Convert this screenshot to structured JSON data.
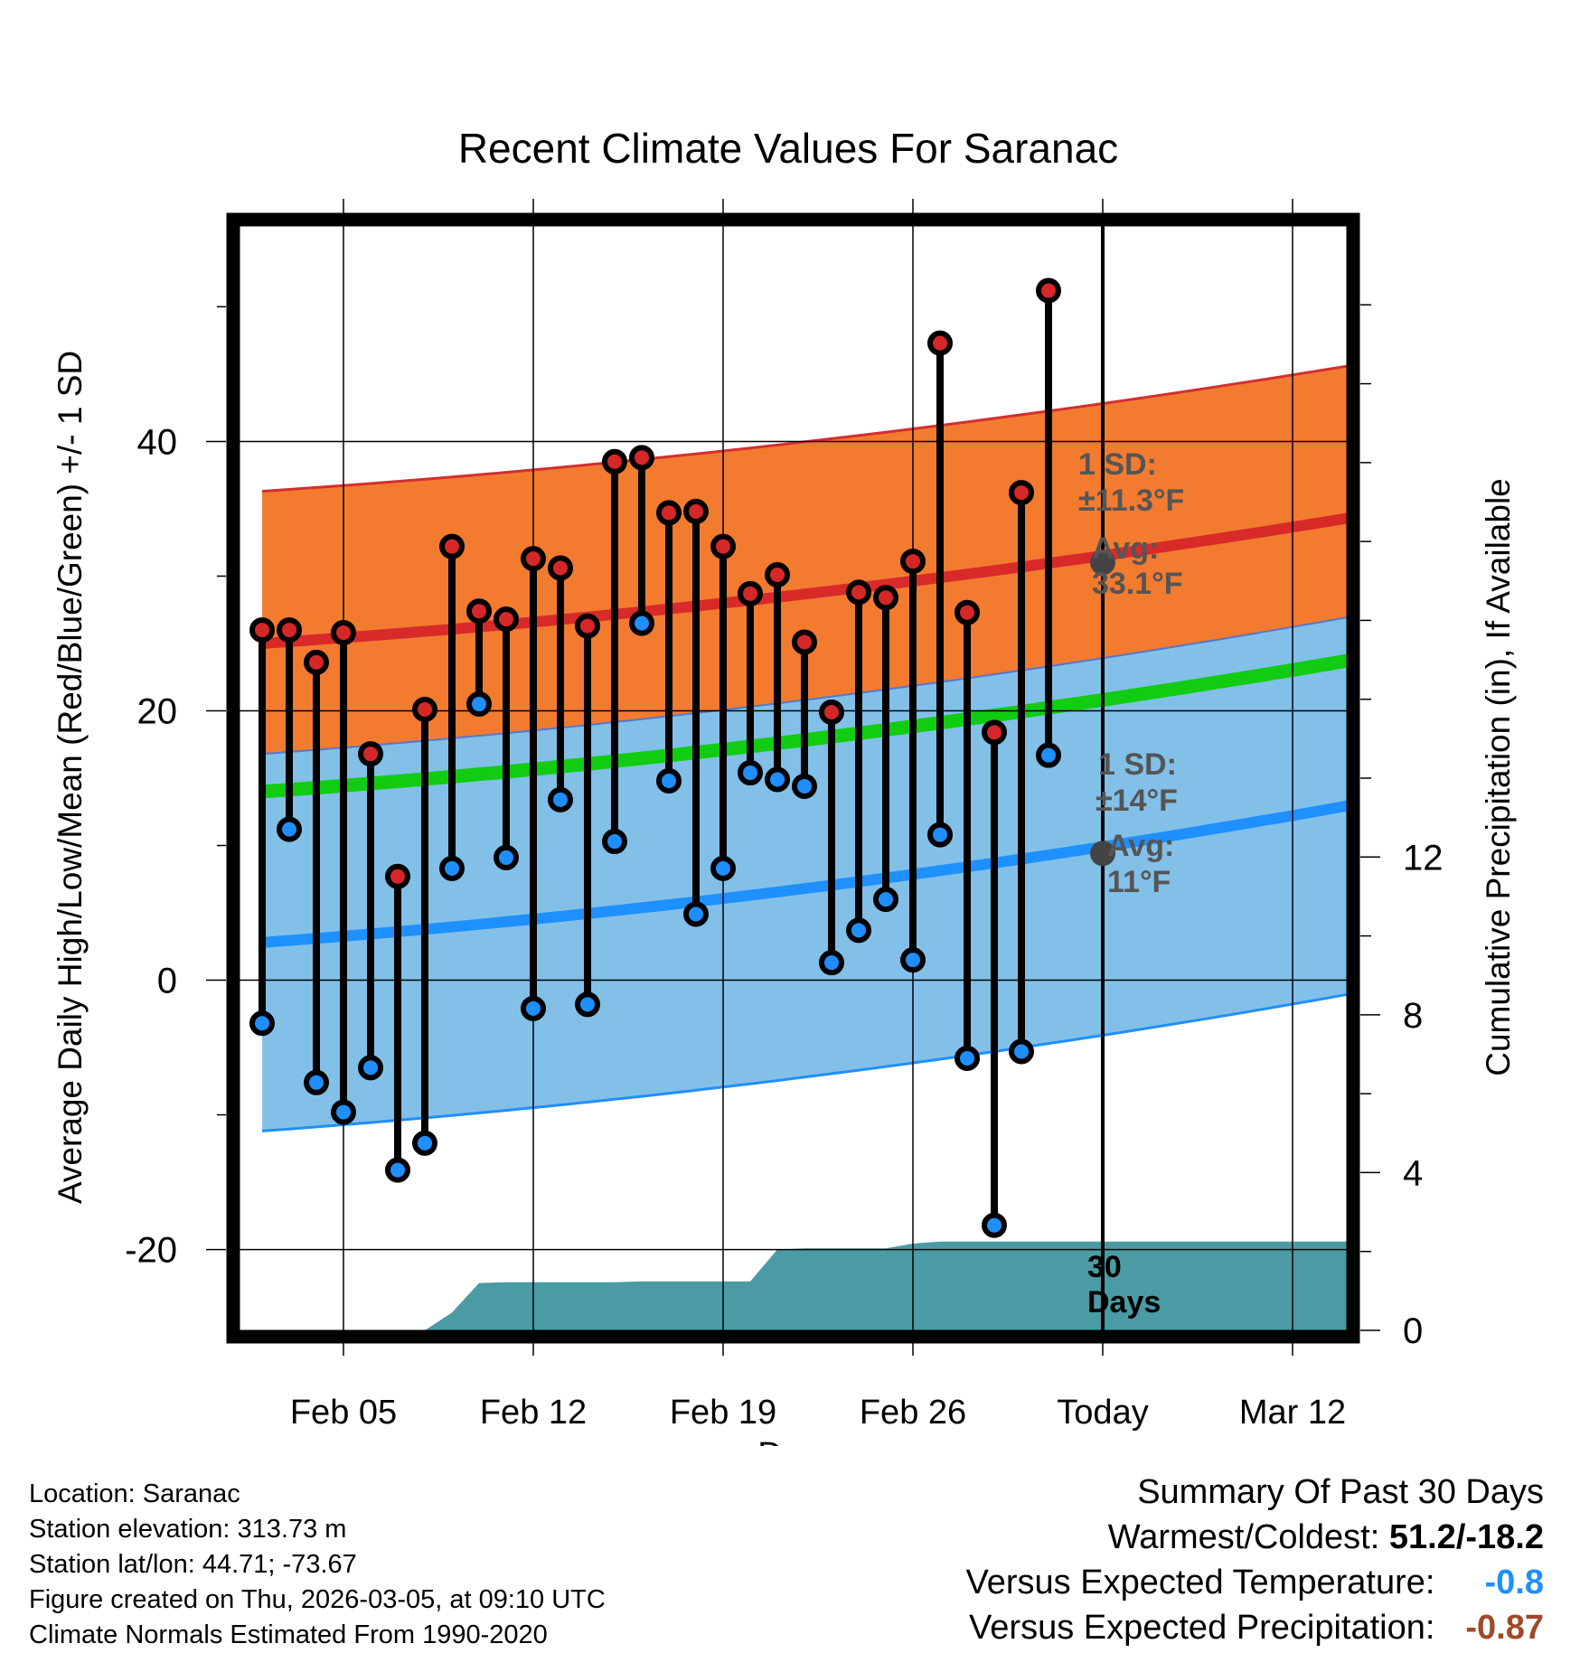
{
  "chart_data": {
    "type": "line",
    "title": "Recent Climate Values For Saranac",
    "xlabel": "Day",
    "ylabel": "Average Daily High/Low/Mean (Red/Blue/Green) +/- 1 SD",
    "y2label": "Cumulative Precipitation (in), If Available",
    "ylim": [
      -26,
      56
    ],
    "y2lim": [
      0,
      28
    ],
    "x_ticks": [
      "Feb 05",
      "Feb 12",
      "Feb 19",
      "Feb 26",
      "Today",
      "Mar 12"
    ],
    "y_ticks": [
      "-20",
      "0",
      "20",
      "40"
    ],
    "y2_ticks": [
      "0",
      "4",
      "8",
      "12"
    ],
    "days": [
      "Feb 02",
      "Feb 03",
      "Feb 04",
      "Feb 05",
      "Feb 06",
      "Feb 07",
      "Feb 08",
      "Feb 09",
      "Feb 10",
      "Feb 11",
      "Feb 12",
      "Feb 13",
      "Feb 14",
      "Feb 15",
      "Feb 16",
      "Feb 17",
      "Feb 18",
      "Feb 19",
      "Feb 20",
      "Feb 21",
      "Feb 22",
      "Feb 23",
      "Feb 24",
      "Feb 25",
      "Feb 26",
      "Feb 27",
      "Feb 28",
      "Mar 01",
      "Mar 02",
      "Mar 03",
      "Mar 04"
    ],
    "series": [
      {
        "name": "Daily High",
        "color": "#d62728",
        "values": [
          26.0,
          26.0,
          23.6,
          25.8,
          16.8,
          7.7,
          20.1,
          32.2,
          27.4,
          26.8,
          31.3,
          30.6,
          26.3,
          38.5,
          38.8,
          34.7,
          34.8,
          32.2,
          28.7,
          30.1,
          25.1,
          19.9,
          28.8,
          28.4,
          31.1,
          47.3,
          27.3,
          18.4,
          36.2,
          51.2,
          null
        ]
      },
      {
        "name": "Daily Low",
        "color": "#1f8fff",
        "values": [
          -3.2,
          11.2,
          -7.6,
          -9.8,
          -6.5,
          -14.1,
          -12.1,
          8.3,
          20.5,
          9.1,
          -2.1,
          13.4,
          -1.8,
          10.3,
          26.5,
          14.8,
          4.9,
          8.3,
          15.4,
          14.9,
          14.4,
          1.3,
          3.7,
          6.0,
          1.5,
          10.8,
          -5.8,
          -18.2,
          -5.3,
          16.7,
          null
        ]
      },
      {
        "name": "Normal High",
        "start": 25.0,
        "end": 36.0,
        "sd": 11.3
      },
      {
        "name": "Normal Low",
        "start": 2.8,
        "end": 14.8,
        "sd": 14
      },
      {
        "name": "Normal Mean",
        "start": 14.0,
        "end": 25.5
      },
      {
        "name": "Cumulative Precipitation",
        "color": "#4a9ba3",
        "values": [
          0,
          0,
          0,
          0,
          0,
          0,
          0,
          0.45,
          1.2,
          1.22,
          1.22,
          1.22,
          1.22,
          1.22,
          1.24,
          1.24,
          1.24,
          1.24,
          1.24,
          2.05,
          2.08,
          2.08,
          2.08,
          2.08,
          2.2,
          2.25,
          2.25,
          2.25,
          2.25,
          2.25,
          2.25
        ]
      }
    ],
    "annotations": {
      "high_sd_label": "1 SD:",
      "high_sd_value": "±11.3°F",
      "high_avg_label": "Avg:",
      "high_avg_value": "33.1°F",
      "low_sd_label": "1 SD:",
      "low_sd_value": "±14°F",
      "low_avg_label": "Avg:",
      "low_avg_value": "11°F",
      "window_label_1": "30",
      "window_label_2": "Days"
    },
    "grid": true
  },
  "footer": {
    "location": "Location: Saranac",
    "elevation": "Station elevation: 313.73 m",
    "latlon": "Station lat/lon: 44.71; -73.67",
    "created": "Figure created on Thu, 2026-03-05, at 09:10 UTC",
    "normals": "Climate Normals Estimated From 1990-2020"
  },
  "summary": {
    "heading": "Summary Of Past 30 Days",
    "warm_cold_label": "Warmest/Coldest:",
    "warm_cold_value": "51.2/-18.2",
    "temp_label": "Versus Expected Temperature:",
    "temp_value": "-0.8",
    "temp_color": "#1e8fff",
    "precip_label": "Versus Expected Precipitation:",
    "precip_value": "-0.87",
    "precip_color": "#9e4a28"
  }
}
